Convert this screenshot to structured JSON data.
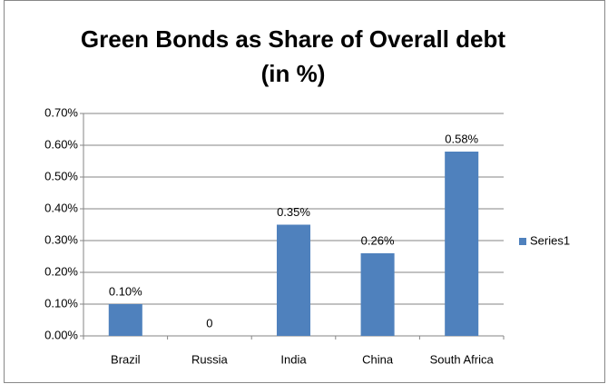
{
  "chart_data": {
    "type": "bar",
    "title": [
      "Green Bonds as Share of Overall debt",
      "(in %)"
    ],
    "categories": [
      "Brazil",
      "Russia",
      "India",
      "China",
      "South Africa"
    ],
    "series": [
      {
        "name": "Series1",
        "color": "#4f81bd",
        "values": [
          0.1,
          0,
          0.35,
          0.26,
          0.58
        ],
        "value_labels": [
          "0.10%",
          "0",
          "0.35%",
          "0.26%",
          "0.58%"
        ]
      }
    ],
    "ylim": [
      0,
      0.7
    ],
    "yticks": [
      {
        "value": 0,
        "label": "0.00%"
      },
      {
        "value": 0.1,
        "label": "0.10%"
      },
      {
        "value": 0.2,
        "label": "0.20%"
      },
      {
        "value": 0.3,
        "label": "0.30%"
      },
      {
        "value": 0.4,
        "label": "0.40%"
      },
      {
        "value": 0.5,
        "label": "0.50%"
      },
      {
        "value": 0.6,
        "label": "0.60%"
      },
      {
        "value": 0.7,
        "label": "0.70%"
      }
    ],
    "grid": true,
    "legend": "right"
  }
}
